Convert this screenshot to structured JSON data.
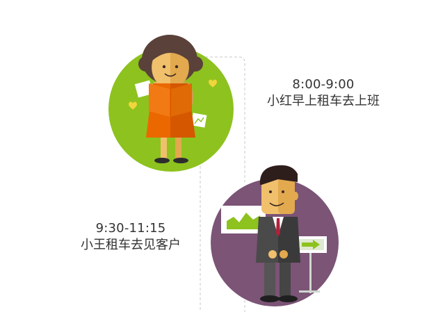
{
  "timeline": {
    "events": [
      {
        "time": "8:00-9:00",
        "description": "小红早上租车去上班",
        "illustration": "woman-reading-illustration",
        "circle_color": "#8dc21f"
      },
      {
        "time": "9:30-11:15",
        "description": "小王租车去见客户",
        "illustration": "businessman-illustration",
        "circle_color": "#7b5476"
      }
    ],
    "connector_color": "#cccccc"
  }
}
